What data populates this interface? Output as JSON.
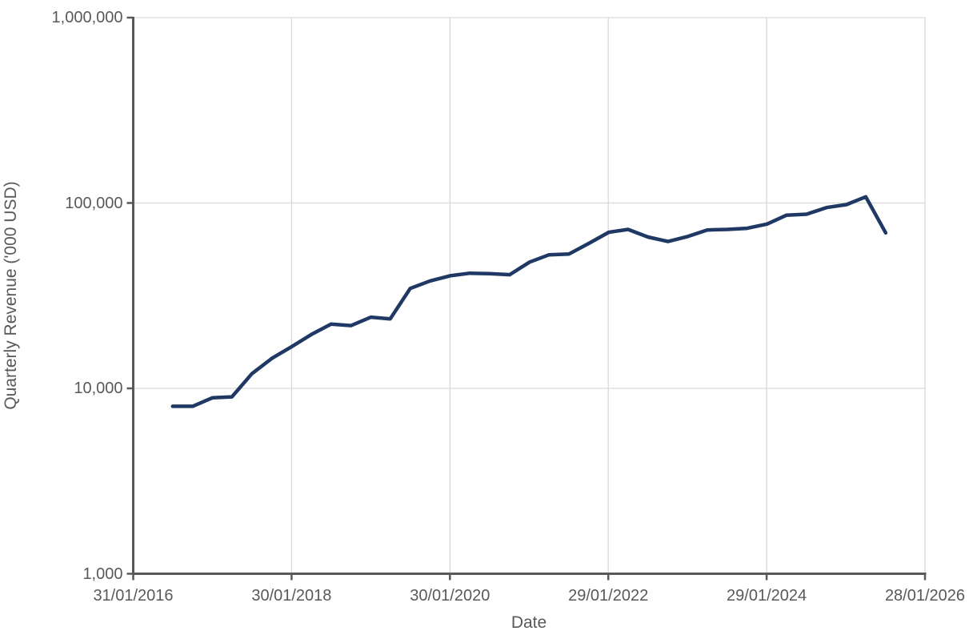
{
  "chart_data": {
    "type": "line",
    "title": "",
    "xlabel": "Date",
    "ylabel": "Quarterly Revenue ('000 USD)",
    "y_scale": "log10",
    "ylim": [
      1000,
      1000000
    ],
    "grid": true,
    "legend": "none",
    "x_range": [
      "31/01/2016",
      "28/01/2026"
    ],
    "x_ticks": [
      {
        "date": "31/01/2016",
        "label": "31/01/2016"
      },
      {
        "date": "30/01/2018",
        "label": "30/01/2018"
      },
      {
        "date": "30/01/2020",
        "label": "30/01/2020"
      },
      {
        "date": "29/01/2022",
        "label": "29/01/2022"
      },
      {
        "date": "29/01/2024",
        "label": "29/01/2024"
      },
      {
        "date": "28/01/2026",
        "label": "28/01/2026"
      }
    ],
    "y_ticks": [
      {
        "value": 1000,
        "label": "1,000"
      },
      {
        "value": 10000,
        "label": "10,000"
      },
      {
        "value": 100000,
        "label": "100,000"
      },
      {
        "value": 1000000,
        "label": "1,000,000"
      }
    ],
    "series": [
      {
        "color": "#1F3864",
        "points": [
          {
            "date": "31/07/2016",
            "value": 8000
          },
          {
            "date": "31/10/2016",
            "value": 8000
          },
          {
            "date": "31/01/2017",
            "value": 8900
          },
          {
            "date": "30/04/2017",
            "value": 9000
          },
          {
            "date": "31/07/2017",
            "value": 12000
          },
          {
            "date": "31/10/2017",
            "value": 14500
          },
          {
            "date": "31/01/2018",
            "value": 16800
          },
          {
            "date": "30/04/2018",
            "value": 19500
          },
          {
            "date": "31/07/2018",
            "value": 22200
          },
          {
            "date": "31/10/2018",
            "value": 21800
          },
          {
            "date": "31/01/2019",
            "value": 24200
          },
          {
            "date": "30/04/2019",
            "value": 23700
          },
          {
            "date": "31/07/2019",
            "value": 34600
          },
          {
            "date": "31/10/2019",
            "value": 38000
          },
          {
            "date": "31/01/2020",
            "value": 40500
          },
          {
            "date": "30/04/2020",
            "value": 41800
          },
          {
            "date": "31/07/2020",
            "value": 41600
          },
          {
            "date": "31/10/2020",
            "value": 41000
          },
          {
            "date": "31/01/2021",
            "value": 48000
          },
          {
            "date": "30/04/2021",
            "value": 52500
          },
          {
            "date": "31/07/2021",
            "value": 53000
          },
          {
            "date": "31/10/2021",
            "value": 60500
          },
          {
            "date": "31/01/2022",
            "value": 69500
          },
          {
            "date": "30/04/2022",
            "value": 72000
          },
          {
            "date": "31/07/2022",
            "value": 65500
          },
          {
            "date": "31/10/2022",
            "value": 62000
          },
          {
            "date": "31/01/2023",
            "value": 66000
          },
          {
            "date": "30/04/2023",
            "value": 71500
          },
          {
            "date": "31/07/2023",
            "value": 72000
          },
          {
            "date": "31/10/2023",
            "value": 73000
          },
          {
            "date": "31/01/2024",
            "value": 77000
          },
          {
            "date": "30/04/2024",
            "value": 86000
          },
          {
            "date": "31/07/2024",
            "value": 87000
          },
          {
            "date": "31/10/2024",
            "value": 94500
          },
          {
            "date": "31/01/2025",
            "value": 98000
          },
          {
            "date": "30/04/2025",
            "value": 108000
          },
          {
            "date": "31/07/2025",
            "value": 69000
          }
        ]
      }
    ]
  },
  "colors": {
    "line": "#1F3864",
    "axis": "#595959",
    "gridline": "#D9D9D9",
    "text": "#595959",
    "background": "#FFFFFF"
  }
}
